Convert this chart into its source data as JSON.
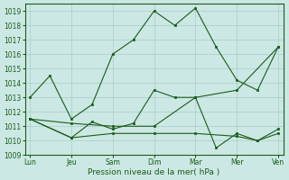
{
  "background_color": "#cce8e4",
  "grid_color": "#a8ccc8",
  "line_color": "#1a5c1a",
  "xlabel": "Pression niveau de la mer( hPa )",
  "ylim": [
    1009,
    1019.5
  ],
  "yticks": [
    1009,
    1010,
    1011,
    1012,
    1013,
    1014,
    1015,
    1016,
    1017,
    1018,
    1019
  ],
  "xtick_labels": [
    "Lun",
    "Jeu",
    "Sam",
    "Dim",
    "Mar",
    "Mer",
    "Ven"
  ],
  "xtick_positions": [
    0,
    16.67,
    33.33,
    50,
    66.67,
    83.33,
    100
  ],
  "lines": [
    {
      "x": [
        0,
        8,
        16.67,
        25,
        33.33,
        41.67,
        50,
        58.33,
        66.67,
        75,
        83.33,
        91.67,
        100
      ],
      "y": [
        1013.0,
        1014.5,
        1011.5,
        1012.5,
        1016.0,
        1017.0,
        1019.0,
        1018.0,
        1019.2,
        1016.5,
        1014.2,
        1013.5,
        1016.5
      ]
    },
    {
      "x": [
        0,
        16.67,
        33.33,
        50,
        66.67,
        83.33,
        100
      ],
      "y": [
        1011.5,
        1011.2,
        1011.0,
        1011.0,
        1013.0,
        1013.5,
        1016.5
      ]
    },
    {
      "x": [
        0,
        16.67,
        25,
        33.33,
        41.67,
        50,
        58.33,
        66.67,
        75,
        83.33,
        91.67,
        100
      ],
      "y": [
        1011.5,
        1010.2,
        1011.3,
        1010.8,
        1011.2,
        1013.5,
        1013.0,
        1013.0,
        1009.5,
        1010.5,
        1010.0,
        1010.8
      ]
    },
    {
      "x": [
        0,
        16.67,
        33.33,
        50,
        66.67,
        83.33,
        91.67,
        100
      ],
      "y": [
        1011.5,
        1010.2,
        1010.5,
        1010.5,
        1010.5,
        1010.3,
        1010.0,
        1010.5
      ]
    }
  ]
}
